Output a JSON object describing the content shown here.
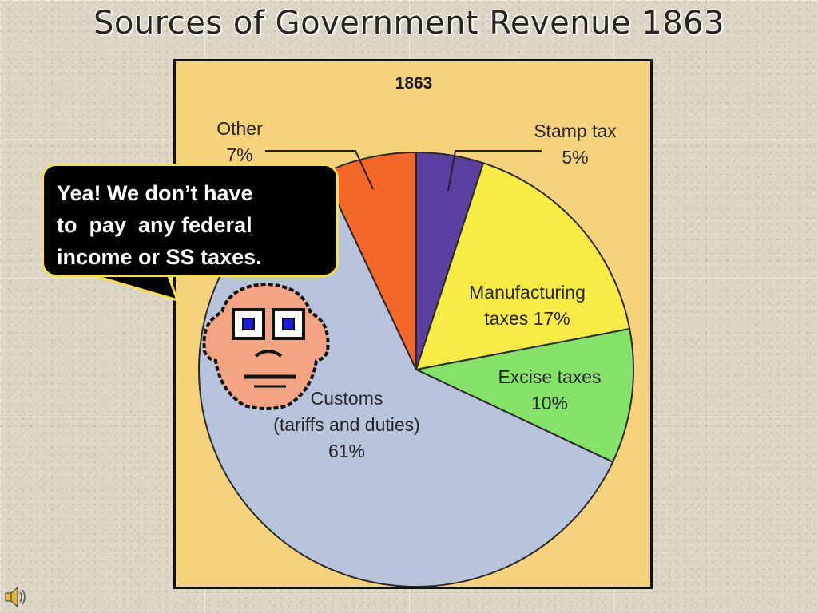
{
  "slide": {
    "title": "Sources of Government Revenue 1863",
    "speech_bubble": {
      "lines": [
        "Yea! We don’t have",
        "to  pay  any federal",
        "income or SS taxes."
      ]
    },
    "icons": [
      "cartoon-face-icon",
      "speaker-icon"
    ]
  },
  "chart_data": {
    "type": "pie",
    "title": "1863",
    "unit": "%",
    "slices": [
      {
        "name": "Stamp tax",
        "label_lines": [
          "Stamp tax",
          "5%"
        ],
        "value": 5,
        "color": "#5a3ea0"
      },
      {
        "name": "Manufacturing taxes",
        "label_lines": [
          "Manufacturing",
          "taxes  17%"
        ],
        "value": 17,
        "color": "#f8ec44"
      },
      {
        "name": "Excise taxes",
        "label_lines": [
          "Excise taxes",
          "10%"
        ],
        "value": 10,
        "color": "#86e36a"
      },
      {
        "name": "Customs (tariffs and duties)",
        "label_lines": [
          "Customs",
          "(tariffs and duties)",
          "61%"
        ],
        "value": 61,
        "color": "#b8c4dc"
      },
      {
        "name": "Other",
        "label_lines": [
          "Other",
          "7%"
        ],
        "value": 7,
        "color": "#f4662a"
      }
    ],
    "background": "#f7d27c"
  }
}
